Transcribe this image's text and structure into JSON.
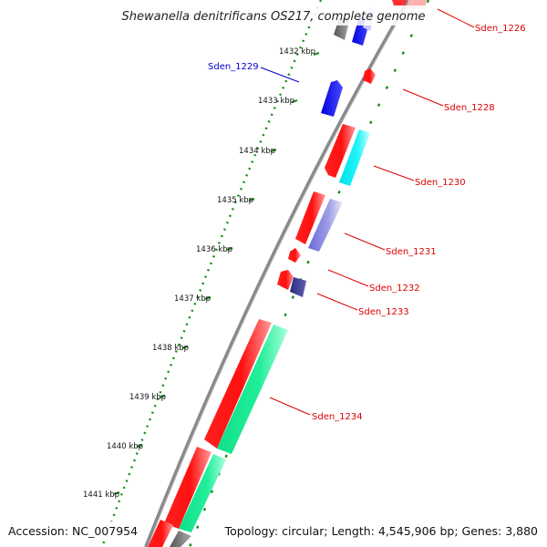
{
  "title": "Shewanella denitrificans OS217, complete genome",
  "footer": {
    "accession": "Accession: NC_007954",
    "summary": "Topology: circular; Length: 4,545,906 bp; Genes: 3,880"
  },
  "colors": {
    "backbone": "#8a8a8a",
    "tick": "#1a8a1a",
    "label_red": "#dd0000",
    "label_blue": "#0000cc"
  },
  "ticks": [
    "1432 kbp",
    "1433 kbp",
    "1434 kbp",
    "1435 kbp",
    "1436 kbp",
    "1437 kbp",
    "1438 kbp",
    "1439 kbp",
    "1440 kbp",
    "1441 kbp"
  ],
  "gene_labels": [
    {
      "text": "Sden_1226",
      "color": "red"
    },
    {
      "text": "Sden_1228",
      "color": "red"
    },
    {
      "text": "Sden_1229",
      "color": "blue"
    },
    {
      "text": "Sden_1230",
      "color": "red"
    },
    {
      "text": "Sden_1231",
      "color": "red"
    },
    {
      "text": "Sden_1232",
      "color": "red"
    },
    {
      "text": "Sden_1233",
      "color": "red"
    },
    {
      "text": "Sden_1234",
      "color": "red"
    }
  ]
}
